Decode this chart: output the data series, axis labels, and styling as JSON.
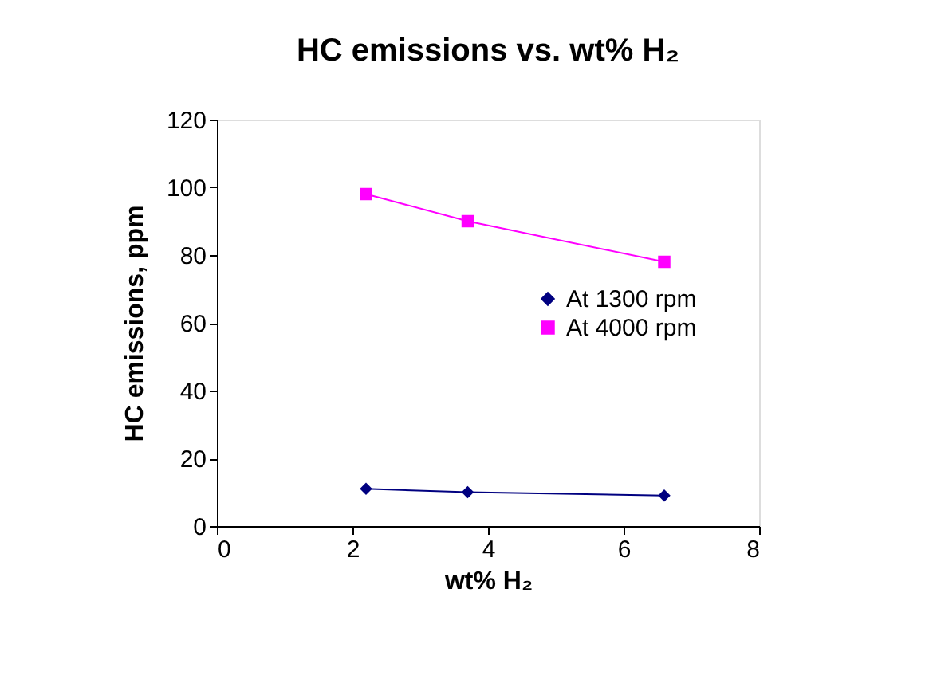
{
  "chart_data": {
    "type": "line",
    "title": "HC emissions vs. wt% H₂",
    "xlabel": "wt% H₂",
    "ylabel": "HC emissions, ppm",
    "series": [
      {
        "name": "At 1300 rpm",
        "color": "#000080",
        "marker": "diamond",
        "x": [
          2.2,
          3.7,
          6.6
        ],
        "values": [
          11,
          10,
          9
        ]
      },
      {
        "name": "At 4000 rpm",
        "color": "#ff00ff",
        "marker": "square",
        "x": [
          2.2,
          3.7,
          6.6
        ],
        "values": [
          98,
          90,
          78
        ]
      }
    ],
    "xlim": [
      0,
      8
    ],
    "xticks": [
      0,
      2,
      4,
      6,
      8
    ],
    "ylim": [
      0,
      120
    ],
    "yticks": [
      0,
      20,
      40,
      60,
      80,
      100,
      120
    ],
    "grid": false,
    "legend": "right",
    "line_style": "solid"
  }
}
